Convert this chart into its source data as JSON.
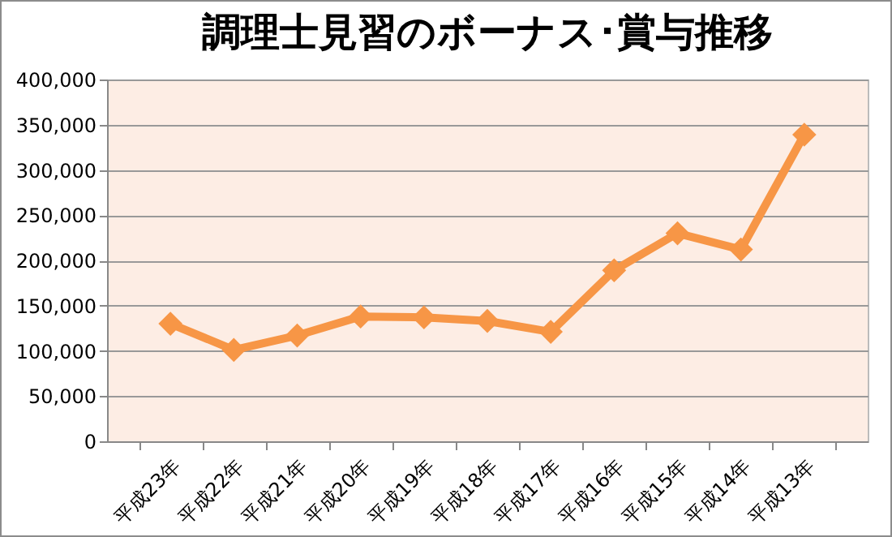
{
  "chart_data": {
    "type": "line",
    "title": "調理士見習のボーナス･賞与推移",
    "categories": [
      "平成23年",
      "平成22年",
      "平成21年",
      "平成20年",
      "平成19年",
      "平成18年",
      "平成17年",
      "平成16年",
      "平成15年",
      "平成14年",
      "平成13年"
    ],
    "series": [
      {
        "color": "#f79646",
        "values": [
          130000,
          101000,
          117000,
          138000,
          137000,
          133000,
          121000,
          189000,
          230000,
          212000,
          339000
        ]
      }
    ],
    "ylim": [
      0,
      400000
    ],
    "yticks": [
      0,
      {
        "value": 50000,
        "label": "50,000"
      },
      {
        "value": 100000,
        "label": "100,000"
      },
      {
        "value": 150000,
        "label": "150,000"
      },
      {
        "value": 200000,
        "label": "200,000"
      },
      {
        "value": 250000,
        "label": "250,000"
      },
      {
        "value": 300000,
        "label": "300,000"
      },
      {
        "value": 350000,
        "label": "350,000"
      },
      {
        "value": 400000,
        "label": "400,000"
      }
    ],
    "grid": "y",
    "marker": "diamond",
    "line_style": "solid",
    "legend": false
  }
}
